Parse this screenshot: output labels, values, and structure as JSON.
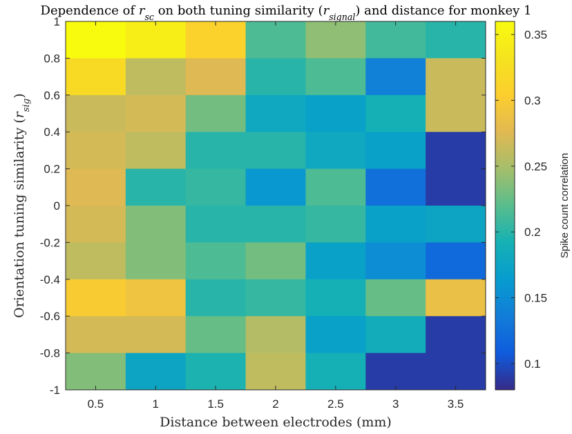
{
  "chart_data": {
    "type": "heatmap",
    "title_parts": [
      {
        "text": "Dependence of ",
        "italic": false
      },
      {
        "text": "r",
        "italic": true
      },
      {
        "text": "sc",
        "italic": true,
        "sub": true
      },
      {
        "text": " on both tuning similarity (",
        "italic": false
      },
      {
        "text": "r",
        "italic": true
      },
      {
        "text": "signal",
        "italic": true,
        "sub": true
      },
      {
        "text": ") and distance for monkey 1",
        "italic": false
      }
    ],
    "xlabel": "Distance between electrodes (mm)",
    "ylabel_parts": [
      {
        "text": "Orientation tuning similarity (",
        "italic": false
      },
      {
        "text": "r",
        "italic": true
      },
      {
        "text": "sig",
        "italic": true,
        "sub": true
      },
      {
        "text": ")",
        "italic": false
      }
    ],
    "x_categories": [
      0.5,
      1,
      1.5,
      2,
      2.5,
      3,
      3.5
    ],
    "x_tick_labels": [
      "0.5",
      "1",
      "1.5",
      "2",
      "2.5",
      "3",
      "3.5"
    ],
    "y_edges": [
      -1,
      -0.8,
      -0.6,
      -0.4,
      -0.2,
      0,
      0.2,
      0.4,
      0.6,
      0.8,
      1
    ],
    "y_tick_labels": [
      "1",
      "0.8",
      "0.6",
      "0.4",
      "0.2",
      "0",
      "-0.2",
      "-0.4",
      "-0.6",
      "-0.8",
      "-1"
    ],
    "ylim": [
      -1,
      1
    ],
    "values_rows_top_to_bottom": [
      [
        0.36,
        0.345,
        0.31,
        0.215,
        0.24,
        0.21,
        0.2
      ],
      [
        0.32,
        0.26,
        0.275,
        0.2,
        0.215,
        0.14,
        0.265
      ],
      [
        0.265,
        0.27,
        0.23,
        0.18,
        0.17,
        0.19,
        0.265
      ],
      [
        0.27,
        0.26,
        0.2,
        0.2,
        0.18,
        0.17,
        0.09
      ],
      [
        0.275,
        0.2,
        0.205,
        0.16,
        0.215,
        0.125,
        0.09
      ],
      [
        0.27,
        0.235,
        0.2,
        0.2,
        0.205,
        0.17,
        0.175
      ],
      [
        0.26,
        0.235,
        0.215,
        0.23,
        0.17,
        0.15,
        0.12
      ],
      [
        0.3,
        0.29,
        0.2,
        0.205,
        0.19,
        0.225,
        0.285
      ],
      [
        0.27,
        0.27,
        0.225,
        0.255,
        0.17,
        0.185,
        0.09
      ],
      [
        0.235,
        0.175,
        0.195,
        0.26,
        0.19,
        0.09,
        0.09
      ]
    ],
    "colorbar": {
      "label": "Spike count correlation",
      "range": [
        0.08,
        0.36
      ],
      "ticks": [
        0.1,
        0.15,
        0.2,
        0.25,
        0.3,
        0.35
      ],
      "tick_labels": [
        "0.1",
        "0.15",
        "0.2",
        "0.25",
        "0.3",
        "0.35"
      ],
      "colormap": "parula"
    }
  }
}
